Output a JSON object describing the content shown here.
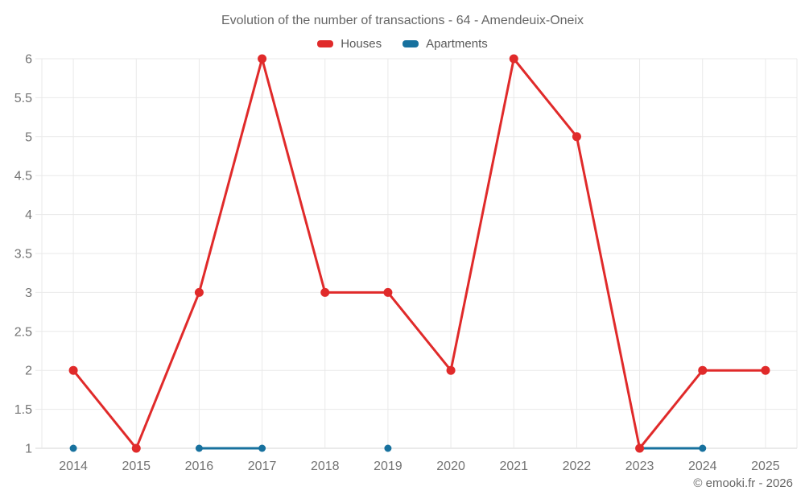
{
  "chart_data": {
    "type": "line",
    "title": "Evolution of the number of transactions - 64 - Amendeuix-Oneix",
    "x": [
      2014,
      2015,
      2016,
      2017,
      2018,
      2019,
      2020,
      2021,
      2022,
      2023,
      2024,
      2025
    ],
    "series": [
      {
        "name": "Houses",
        "color": "#e02a2a",
        "values": [
          2,
          1,
          3,
          6,
          3,
          3,
          2,
          6,
          5,
          1,
          2,
          2
        ]
      },
      {
        "name": "Apartments",
        "color": "#17719e",
        "values": [
          1,
          null,
          1,
          1,
          null,
          1,
          null,
          null,
          null,
          1,
          1,
          null
        ]
      }
    ],
    "ylim": [
      1,
      6
    ],
    "ytick_step": 0.5,
    "grid": true,
    "legend_position": "top",
    "xlabel": "",
    "ylabel": ""
  },
  "footer": {
    "credit": "© emooki.fr - 2026"
  },
  "colors": {
    "grid": "#e9e9e9",
    "axis": "#d4d4d4",
    "tick_text": "#737373"
  }
}
